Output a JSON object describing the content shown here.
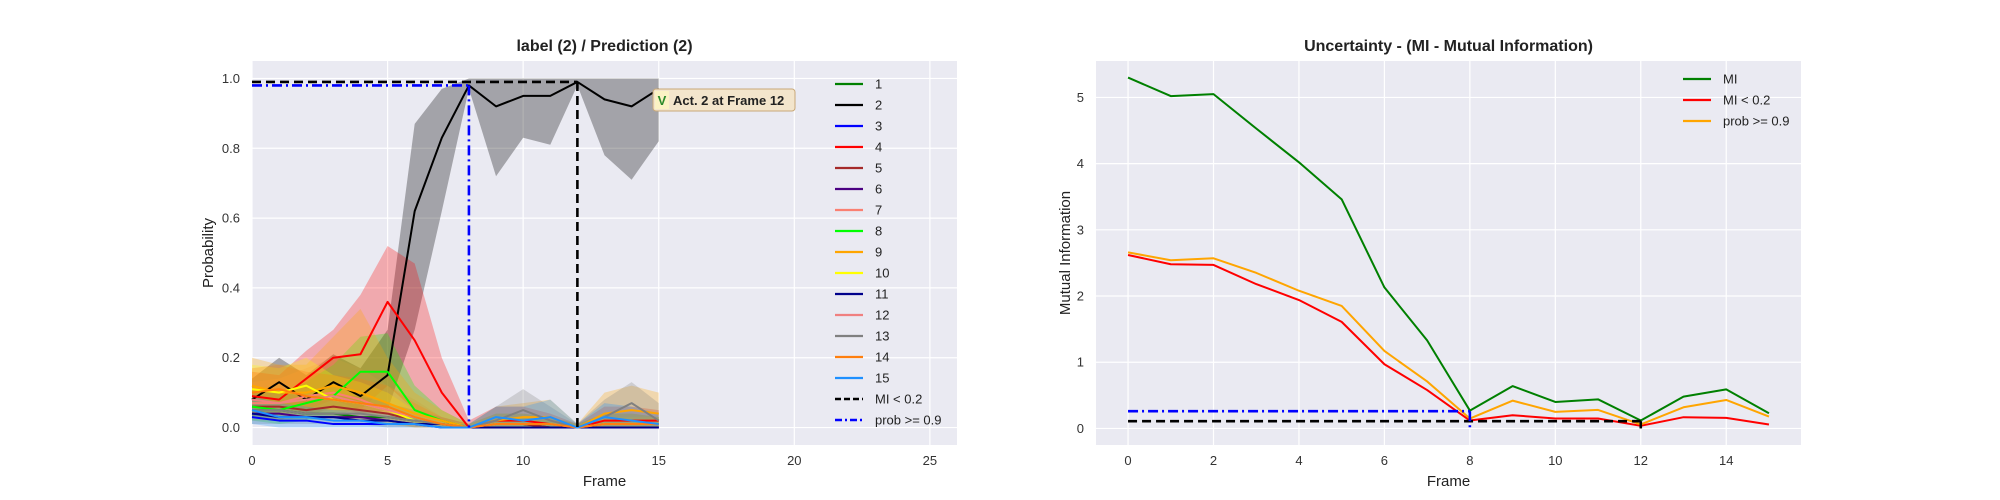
{
  "chart_data": [
    {
      "type": "line",
      "title": "label (2) / Prediction (2)",
      "xlabel": "Frame",
      "ylabel": "Probability",
      "xlim": [
        0,
        26
      ],
      "ylim": [
        -0.05,
        1.05
      ],
      "xticks": [
        0,
        5,
        10,
        15,
        20,
        25
      ],
      "yticks": [
        0.0,
        0.2,
        0.4,
        0.6,
        0.8,
        1.0
      ],
      "grid": true,
      "legend_position": "right, outside plot area",
      "x": [
        0,
        1,
        2,
        3,
        4,
        5,
        6,
        7,
        8,
        9,
        10,
        11,
        12,
        13,
        14,
        15
      ],
      "series": [
        {
          "name": "1",
          "color": "#008000",
          "values": [
            0.05,
            0.05,
            0.04,
            0.04,
            0.03,
            0.03,
            0.02,
            0.01,
            0.0,
            0.01,
            0.01,
            0.0,
            0.0,
            0.01,
            0.01,
            0.01
          ]
        },
        {
          "name": "2",
          "color": "#000000",
          "values": [
            0.08,
            0.13,
            0.08,
            0.13,
            0.09,
            0.15,
            0.62,
            0.83,
            0.98,
            0.92,
            0.95,
            0.95,
            0.99,
            0.94,
            0.92,
            0.97
          ],
          "band_lower": [
            0.03,
            0.06,
            0.03,
            0.06,
            0.04,
            0.05,
            0.28,
            0.62,
            0.97,
            0.72,
            0.83,
            0.81,
            0.98,
            0.78,
            0.71,
            0.82
          ],
          "band_upper": [
            0.14,
            0.2,
            0.15,
            0.21,
            0.17,
            0.28,
            0.87,
            0.97,
            1.0,
            1.0,
            1.0,
            1.0,
            1.0,
            1.0,
            1.0,
            1.0
          ]
        },
        {
          "name": "3",
          "color": "#0000ff",
          "values": [
            0.03,
            0.02,
            0.02,
            0.01,
            0.01,
            0.01,
            0.01,
            0.0,
            0.0,
            0.0,
            0.0,
            0.0,
            0.0,
            0.0,
            0.0,
            0.0
          ]
        },
        {
          "name": "4",
          "color": "#ff0000",
          "values": [
            0.09,
            0.08,
            0.14,
            0.2,
            0.21,
            0.36,
            0.25,
            0.1,
            0.0,
            0.02,
            0.02,
            0.01,
            0.0,
            0.02,
            0.02,
            0.02
          ],
          "band_lower": [
            0.03,
            0.02,
            0.05,
            0.08,
            0.05,
            0.12,
            0.05,
            0.02,
            0.0,
            0.0,
            0.0,
            0.0,
            0.0,
            0.0,
            0.0,
            0.0
          ],
          "band_upper": [
            0.16,
            0.15,
            0.22,
            0.28,
            0.38,
            0.52,
            0.47,
            0.2,
            0.02,
            0.06,
            0.06,
            0.04,
            0.01,
            0.06,
            0.06,
            0.05
          ]
        },
        {
          "name": "5",
          "color": "#a52a2a",
          "values": [
            0.06,
            0.06,
            0.05,
            0.06,
            0.05,
            0.04,
            0.02,
            0.01,
            0.0,
            0.01,
            0.01,
            0.0,
            0.0,
            0.01,
            0.01,
            0.01
          ]
        },
        {
          "name": "6",
          "color": "#4b0082",
          "values": [
            0.04,
            0.04,
            0.03,
            0.03,
            0.03,
            0.02,
            0.01,
            0.01,
            0.0,
            0.0,
            0.0,
            0.0,
            0.0,
            0.0,
            0.0,
            0.0
          ]
        },
        {
          "name": "7",
          "color": "#fa8072",
          "values": [
            0.07,
            0.07,
            0.09,
            0.1,
            0.08,
            0.05,
            0.03,
            0.01,
            0.0,
            0.01,
            0.01,
            0.01,
            0.0,
            0.01,
            0.01,
            0.01
          ],
          "band_lower": [
            0.02,
            0.02,
            0.03,
            0.04,
            0.03,
            0.01,
            0.0,
            0.0,
            0.0,
            0.0,
            0.0,
            0.0,
            0.0,
            0.0,
            0.0,
            0.0
          ],
          "band_upper": [
            0.13,
            0.14,
            0.17,
            0.2,
            0.17,
            0.12,
            0.08,
            0.03,
            0.01,
            0.03,
            0.03,
            0.02,
            0.01,
            0.03,
            0.03,
            0.03
          ]
        },
        {
          "name": "8",
          "color": "#00ff00",
          "values": [
            0.06,
            0.05,
            0.07,
            0.09,
            0.16,
            0.16,
            0.05,
            0.02,
            0.0,
            0.01,
            0.01,
            0.01,
            0.0,
            0.01,
            0.01,
            0.01
          ],
          "band_lower": [
            0.02,
            0.01,
            0.02,
            0.03,
            0.06,
            0.06,
            0.01,
            0.0,
            0.0,
            0.0,
            0.0,
            0.0,
            0.0,
            0.0,
            0.0,
            0.0
          ],
          "band_upper": [
            0.11,
            0.1,
            0.13,
            0.18,
            0.26,
            0.27,
            0.12,
            0.05,
            0.01,
            0.04,
            0.04,
            0.03,
            0.01,
            0.04,
            0.04,
            0.03
          ]
        },
        {
          "name": "9",
          "color": "#ffa500",
          "values": [
            0.12,
            0.1,
            0.1,
            0.12,
            0.1,
            0.07,
            0.04,
            0.02,
            0.0,
            0.02,
            0.03,
            0.03,
            0.0,
            0.04,
            0.05,
            0.04
          ],
          "band_lower": [
            0.05,
            0.04,
            0.04,
            0.05,
            0.04,
            0.02,
            0.01,
            0.0,
            0.0,
            0.0,
            0.0,
            0.0,
            0.0,
            0.0,
            0.0,
            0.0
          ],
          "band_upper": [
            0.2,
            0.18,
            0.18,
            0.26,
            0.34,
            0.2,
            0.1,
            0.05,
            0.01,
            0.06,
            0.07,
            0.08,
            0.01,
            0.1,
            0.12,
            0.1
          ]
        },
        {
          "name": "10",
          "color": "#ffff00",
          "values": [
            0.11,
            0.1,
            0.12,
            0.08,
            0.07,
            0.05,
            0.02,
            0.01,
            0.0,
            0.01,
            0.01,
            0.01,
            0.0,
            0.01,
            0.01,
            0.01
          ],
          "band_lower": [
            0.04,
            0.04,
            0.05,
            0.03,
            0.02,
            0.01,
            0.0,
            0.0,
            0.0,
            0.0,
            0.0,
            0.0,
            0.0,
            0.0,
            0.0,
            0.0
          ],
          "band_upper": [
            0.18,
            0.17,
            0.2,
            0.15,
            0.13,
            0.1,
            0.05,
            0.02,
            0.01,
            0.03,
            0.03,
            0.02,
            0.01,
            0.03,
            0.03,
            0.03
          ]
        },
        {
          "name": "11",
          "color": "#00008b",
          "values": [
            0.04,
            0.03,
            0.03,
            0.03,
            0.02,
            0.02,
            0.01,
            0.01,
            0.0,
            0.0,
            0.0,
            0.0,
            0.0,
            0.0,
            0.0,
            0.0
          ]
        },
        {
          "name": "12",
          "color": "#f08080",
          "values": [
            0.08,
            0.07,
            0.08,
            0.09,
            0.07,
            0.05,
            0.03,
            0.01,
            0.0,
            0.01,
            0.01,
            0.01,
            0.0,
            0.01,
            0.01,
            0.01
          ]
        },
        {
          "name": "13",
          "color": "#808080",
          "values": [
            0.05,
            0.05,
            0.04,
            0.04,
            0.04,
            0.03,
            0.02,
            0.01,
            0.0,
            0.02,
            0.05,
            0.02,
            0.0,
            0.03,
            0.07,
            0.02
          ],
          "band_lower": [
            0.01,
            0.01,
            0.01,
            0.01,
            0.01,
            0.0,
            0.0,
            0.0,
            0.0,
            0.0,
            0.0,
            0.0,
            0.0,
            0.0,
            0.0,
            0.0
          ],
          "band_upper": [
            0.1,
            0.1,
            0.09,
            0.09,
            0.09,
            0.07,
            0.05,
            0.03,
            0.01,
            0.06,
            0.11,
            0.06,
            0.01,
            0.08,
            0.13,
            0.07
          ]
        },
        {
          "name": "14",
          "color": "#ff7f0e",
          "values": [
            0.1,
            0.11,
            0.09,
            0.08,
            0.07,
            0.06,
            0.03,
            0.01,
            0.0,
            0.01,
            0.01,
            0.01,
            0.0,
            0.01,
            0.01,
            0.01
          ],
          "band_lower": [
            0.04,
            0.04,
            0.03,
            0.03,
            0.02,
            0.02,
            0.0,
            0.0,
            0.0,
            0.0,
            0.0,
            0.0,
            0.0,
            0.0,
            0.0,
            0.0
          ],
          "band_upper": [
            0.17,
            0.18,
            0.16,
            0.15,
            0.14,
            0.12,
            0.07,
            0.03,
            0.01,
            0.04,
            0.04,
            0.03,
            0.01,
            0.04,
            0.04,
            0.03
          ]
        },
        {
          "name": "15",
          "color": "#1e90ff",
          "values": [
            0.05,
            0.03,
            0.03,
            0.02,
            0.02,
            0.01,
            0.01,
            0.0,
            0.0,
            0.03,
            0.02,
            0.03,
            0.0,
            0.03,
            0.02,
            0.01
          ],
          "band_lower": [
            0.01,
            0.0,
            0.0,
            0.0,
            0.0,
            0.0,
            0.0,
            0.0,
            0.0,
            0.0,
            0.0,
            0.0,
            0.0,
            0.0,
            0.0,
            0.0
          ],
          "band_upper": [
            0.09,
            0.07,
            0.06,
            0.05,
            0.05,
            0.04,
            0.03,
            0.01,
            0.01,
            0.06,
            0.06,
            0.08,
            0.01,
            0.07,
            0.06,
            0.04
          ]
        }
      ],
      "reference_lines": [
        {
          "name": "MI < 0.2",
          "style": "dashed",
          "color": "#000000",
          "y": 0.99,
          "x_range": [
            0,
            12
          ],
          "vertical_at_x": 12
        },
        {
          "name": "prob >= 0.9",
          "style": "dashdot",
          "color": "#0000ff",
          "y": 0.98,
          "x_range": [
            0,
            8
          ],
          "vertical_at_x": 8
        }
      ],
      "annotation": {
        "badge": "V",
        "text": "Act. 2 at Frame 12",
        "x": 15,
        "y": 0.95
      }
    },
    {
      "type": "line",
      "title": "Uncertainty - (MI - Mutual Information)",
      "xlabel": "Frame",
      "ylabel": "Mutual Information",
      "xlim": [
        -0.75,
        15.75
      ],
      "ylim": [
        -0.25,
        5.55
      ],
      "xticks": [
        0,
        2,
        4,
        6,
        8,
        10,
        12,
        14
      ],
      "yticks": [
        0,
        1,
        2,
        3,
        4,
        5
      ],
      "grid": true,
      "legend_position": "top-right",
      "x": [
        0,
        1,
        2,
        3,
        4,
        5,
        6,
        7,
        8,
        9,
        10,
        11,
        12,
        13,
        14,
        15
      ],
      "series": [
        {
          "name": "MI",
          "color": "#008000",
          "values": [
            5.3,
            5.02,
            5.05,
            4.53,
            4.02,
            3.46,
            2.13,
            1.33,
            0.27,
            0.64,
            0.4,
            0.44,
            0.12,
            0.48,
            0.59,
            0.23
          ]
        },
        {
          "name": "MI < 0.2",
          "color": "#ff0000",
          "values": [
            2.62,
            2.48,
            2.47,
            2.18,
            1.94,
            1.61,
            0.97,
            0.58,
            0.12,
            0.2,
            0.15,
            0.15,
            0.04,
            0.17,
            0.16,
            0.06
          ]
        },
        {
          "name": "prob >= 0.9",
          "color": "#ffa500",
          "values": [
            2.66,
            2.54,
            2.57,
            2.35,
            2.08,
            1.85,
            1.17,
            0.71,
            0.15,
            0.42,
            0.25,
            0.28,
            0.06,
            0.32,
            0.43,
            0.18
          ]
        }
      ],
      "reference_lines": [
        {
          "name": "MI < 0.2",
          "style": "dashed",
          "color": "#000000",
          "y": 0.11,
          "x_range": [
            0,
            12
          ],
          "vertical_at_x": 12
        },
        {
          "name": "prob >= 0.9",
          "style": "dashdot",
          "color": "#0000ff",
          "y": 0.26,
          "x_range": [
            0,
            8
          ],
          "vertical_at_x": 8
        }
      ]
    }
  ]
}
